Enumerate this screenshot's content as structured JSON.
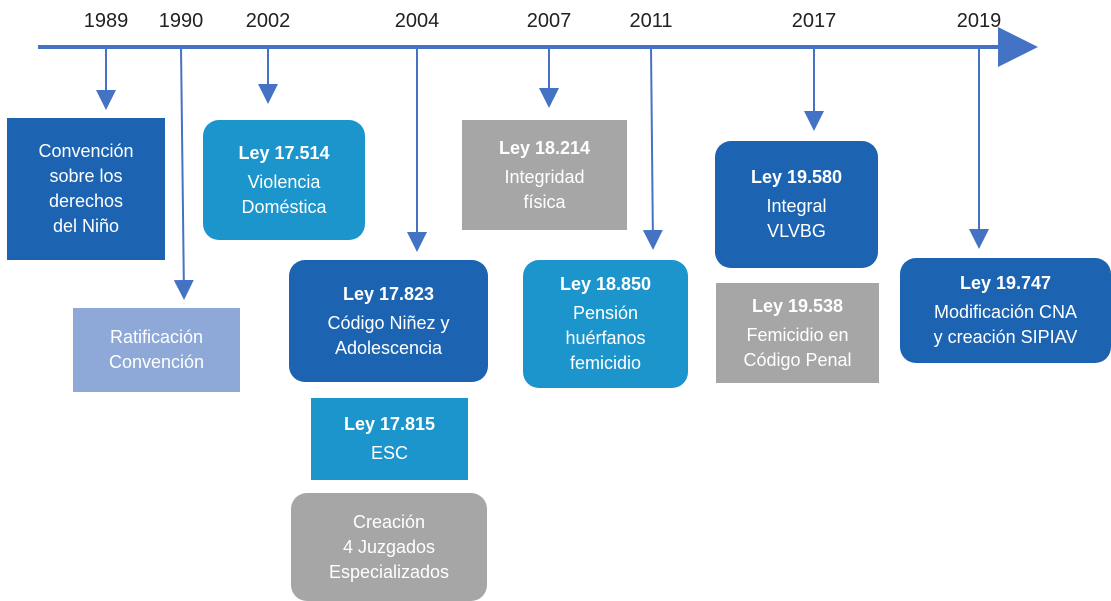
{
  "years": [
    "1989",
    "1990",
    "2002",
    "2004",
    "2007",
    "2011",
    "2017",
    "2019"
  ],
  "boxes": [
    {
      "lines": [
        "Convención",
        "sobre los",
        "derechos",
        "del Niño"
      ]
    },
    {
      "lines": [
        "Ratificación",
        "Convención"
      ]
    },
    {
      "title": "Ley 17.514",
      "lines": [
        "Violencia",
        "Doméstica"
      ]
    },
    {
      "title": "Ley 17.823",
      "lines": [
        "Código Niñez y",
        "Adolescencia"
      ]
    },
    {
      "title": "Ley 17.815",
      "lines": [
        "ESC"
      ]
    },
    {
      "lines": [
        "Creación",
        "4 Juzgados",
        "Especializados"
      ]
    },
    {
      "title": "Ley 18.214",
      "lines": [
        "Integridad",
        "física"
      ]
    },
    {
      "title": "Ley 18.850",
      "lines": [
        "Pensión",
        "huérfanos",
        "femicidio"
      ]
    },
    {
      "title": "Ley 19.580",
      "lines": [
        "Integral",
        "VLVBG"
      ]
    },
    {
      "title": "Ley 19.538",
      "lines": [
        "Femicidio en",
        "Código Penal"
      ]
    },
    {
      "title": "Ley 19.747",
      "lines": [
        "Modificación CNA",
        "y creación SIPIAV"
      ]
    }
  ]
}
